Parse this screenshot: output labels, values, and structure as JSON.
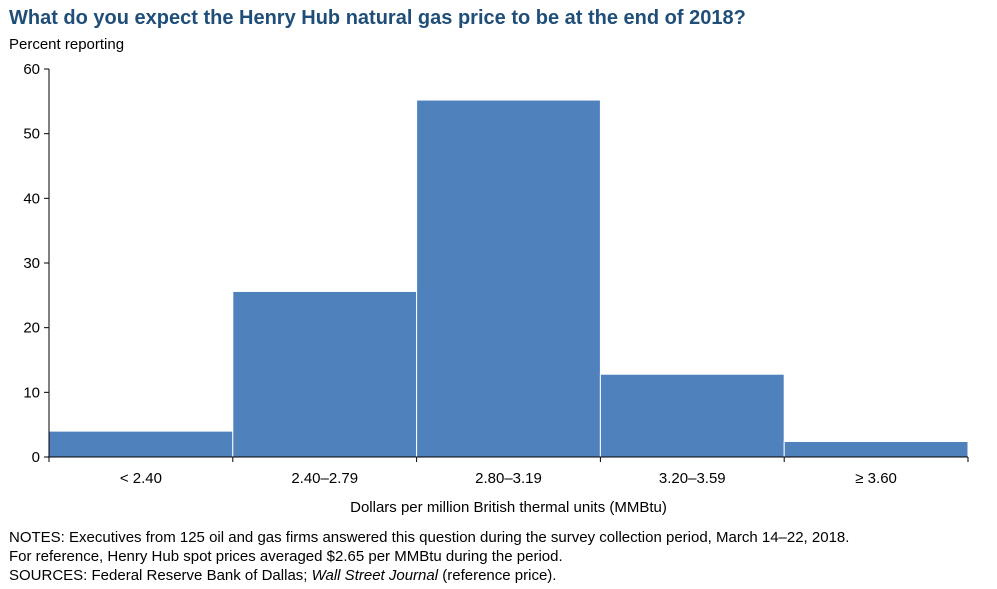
{
  "chart_data": {
    "type": "bar",
    "title": "What do you expect the Henry Hub natural gas price to be at the end of 2018?",
    "ylabel": "Percent reporting",
    "xlabel": "Dollars per million British thermal units (MMBtu)",
    "categories": [
      "< 2.40",
      "2.40–2.79",
      "2.80–3.19",
      "3.20–3.59",
      "≥ 3.60"
    ],
    "values": [
      4.0,
      25.6,
      55.2,
      12.8,
      2.4
    ],
    "ylim": [
      0,
      60
    ],
    "yticks": [
      0,
      10,
      20,
      30,
      40,
      50,
      60
    ],
    "grid": false,
    "bar_color": "#4f81bd"
  },
  "notes": {
    "line1": "NOTES: Executives from 125 oil and gas firms answered this question during the survey collection period, March 14–22, 2018.",
    "line2": "For reference, Henry Hub spot prices averaged $2.65 per MMBtu during the period.",
    "line3_prefix": "SOURCES: Federal Reserve Bank of Dallas; ",
    "line3_italic": "Wall Street Journal",
    "line3_suffix": " (reference price)."
  }
}
